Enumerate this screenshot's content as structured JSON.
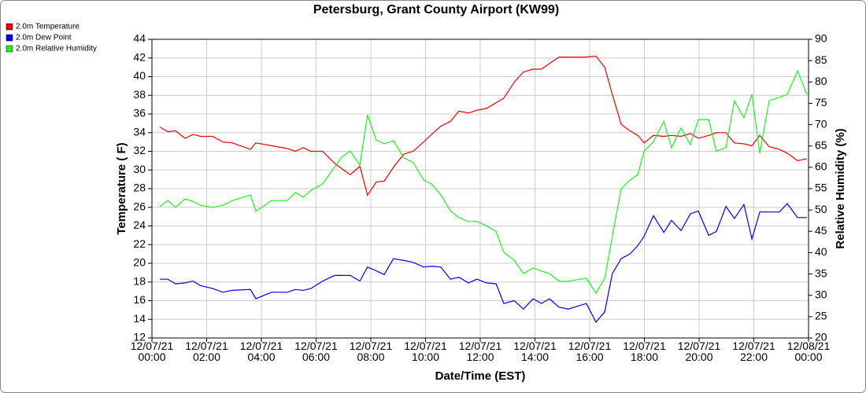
{
  "chart_data": {
    "type": "line",
    "title": "Petersburg, Grant County Airport (KW99)",
    "x_label": "Date/Time (EST)",
    "y_label": "Temperature ( F)",
    "y2_label": "Relative Humidity (%)",
    "legend": "top-left",
    "grid": true,
    "xlim": [
      0,
      24
    ],
    "xticks": [
      {
        "value": 0,
        "label": "12/07/21\n00:00"
      },
      {
        "value": 2,
        "label": "12/07/21\n02:00"
      },
      {
        "value": 4,
        "label": "12/07/21\n04:00"
      },
      {
        "value": 6,
        "label": "12/07/21\n06:00"
      },
      {
        "value": 8,
        "label": "12/07/21\n08:00"
      },
      {
        "value": 10,
        "label": "12/07/21\n10:00"
      },
      {
        "value": 12,
        "label": "12/07/21\n12:00"
      },
      {
        "value": 14,
        "label": "12/07/21\n14:00"
      },
      {
        "value": 16,
        "label": "12/07/21\n16:00"
      },
      {
        "value": 18,
        "label": "12/07/21\n18:00"
      },
      {
        "value": 20,
        "label": "12/07/21\n20:00"
      },
      {
        "value": 22,
        "label": "12/07/21\n22:00"
      },
      {
        "value": 24,
        "label": "12/08/21\n00:00"
      }
    ],
    "ylim": [
      12,
      44
    ],
    "yticks": [
      12,
      14,
      16,
      18,
      20,
      22,
      24,
      26,
      28,
      30,
      32,
      34,
      36,
      38,
      40,
      42,
      44
    ],
    "y2lim": [
      20,
      90
    ],
    "y2ticks": [
      20,
      25,
      30,
      35,
      40,
      45,
      50,
      55,
      60,
      65,
      70,
      75,
      80,
      85,
      90
    ],
    "x": [
      0.29,
      0.58,
      0.86,
      1.21,
      1.5,
      1.78,
      2.22,
      2.59,
      2.94,
      3.6,
      3.8,
      4.37,
      4.95,
      5.24,
      5.53,
      5.81,
      6.24,
      6.68,
      6.96,
      7.25,
      7.6,
      7.88,
      8.2,
      8.49,
      8.83,
      9.21,
      9.55,
      9.93,
      10.22,
      10.56,
      10.91,
      11.22,
      11.57,
      11.88,
      12.23,
      12.58,
      12.86,
      13.24,
      13.58,
      13.93,
      14.24,
      14.53,
      14.88,
      15.22,
      15.88,
      16.23,
      16.55,
      16.83,
      17.15,
      17.47,
      17.76,
      17.99,
      18.33,
      18.71,
      18.99,
      19.34,
      19.68,
      19.97,
      20.35,
      20.63,
      20.98,
      21.29,
      21.64,
      21.93,
      22.22,
      22.56,
      22.94,
      23.22,
      23.6,
      23.94
    ],
    "series": [
      {
        "name": "2.0m Temperature",
        "color": "#ee0000",
        "values": [
          34.6,
          34.1,
          34.2,
          33.4,
          33.8,
          33.6,
          33.6,
          33.0,
          32.9,
          32.2,
          32.9,
          32.6,
          32.3,
          32.0,
          32.4,
          32.0,
          32.0,
          30.7,
          30.1,
          29.5,
          30.4,
          27.3,
          28.7,
          28.8,
          30.3,
          31.7,
          32.0,
          33.0,
          33.8,
          34.7,
          35.2,
          36.3,
          36.1,
          36.4,
          36.6,
          37.2,
          37.7,
          39.4,
          40.5,
          40.8,
          40.8,
          41.4,
          42.1,
          42.1,
          42.1,
          42.2,
          41.0,
          38.1,
          34.9,
          34.2,
          33.7,
          32.9,
          33.7,
          33.6,
          33.7,
          33.6,
          33.9,
          33.4,
          33.7,
          34.0,
          34.0,
          32.9,
          32.8,
          32.6,
          33.7,
          32.5,
          32.2,
          31.8,
          31.0,
          31.2
        ]
      },
      {
        "name": "2.0m Dew Point",
        "color": "#0000ee",
        "values": [
          18.3,
          18.3,
          17.8,
          17.9,
          18.1,
          17.6,
          17.3,
          16.9,
          17.1,
          17.2,
          16.2,
          16.9,
          16.9,
          17.2,
          17.1,
          17.3,
          18.1,
          18.7,
          18.7,
          18.7,
          18.1,
          19.6,
          19.2,
          18.8,
          20.5,
          20.3,
          20.1,
          19.6,
          19.7,
          19.6,
          18.3,
          18.5,
          17.9,
          18.3,
          17.9,
          17.8,
          15.7,
          16.0,
          15.1,
          16.2,
          15.7,
          16.2,
          15.3,
          15.1,
          15.7,
          13.7,
          14.8,
          18.9,
          20.5,
          21.0,
          21.9,
          22.9,
          25.1,
          23.3,
          24.6,
          23.5,
          25.3,
          25.6,
          23.0,
          23.4,
          26.1,
          24.8,
          26.3,
          22.6,
          25.5,
          25.5,
          25.5,
          26.4,
          24.9,
          24.9
        ]
      },
      {
        "name": "2.0m Relative Humidity",
        "color": "#22ee22",
        "axis": "y2",
        "values": [
          50.8,
          52.2,
          50.6,
          52.6,
          52.0,
          51.1,
          50.6,
          51.1,
          52.2,
          53.5,
          49.7,
          52.2,
          52.2,
          54.1,
          53.0,
          54.6,
          56.1,
          60.1,
          62.5,
          63.8,
          60.5,
          72.3,
          66.4,
          65.5,
          66.2,
          62.2,
          61.1,
          57.0,
          56.1,
          53.5,
          49.8,
          48.2,
          47.3,
          47.3,
          46.3,
          44.9,
          40.1,
          38.2,
          35.1,
          36.4,
          35.7,
          35.1,
          33.3,
          33.3,
          34.0,
          30.5,
          34.0,
          43.9,
          55.0,
          57.0,
          58.3,
          63.8,
          66.0,
          70.8,
          64.6,
          69.2,
          65.3,
          71.2,
          71.2,
          63.8,
          64.6,
          75.6,
          71.6,
          77.1,
          63.3,
          75.6,
          76.4,
          77.1,
          82.6,
          77.1
        ]
      }
    ]
  }
}
